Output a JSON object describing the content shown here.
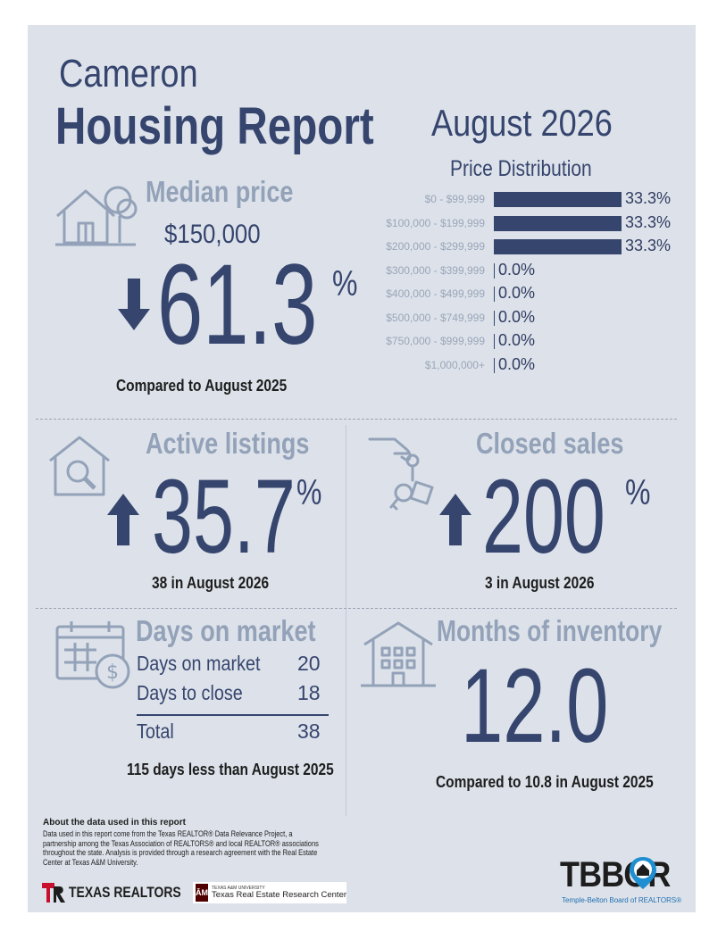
{
  "header": {
    "city": "Cameron",
    "title": "Housing Report",
    "period": "August 2026"
  },
  "median_price": {
    "label": "Median price",
    "value": "$150,000",
    "change": "61.3",
    "pct_sign": "%",
    "direction": "down",
    "comparison": "Compared to August 2025"
  },
  "price_distribution": {
    "title": "Price Distribution",
    "rows": [
      {
        "range": "$0 - $99,999",
        "pct": "33.3%",
        "value": 33.3
      },
      {
        "range": "$100,000 - $199,999",
        "pct": "33.3%",
        "value": 33.3
      },
      {
        "range": "$200,000 - $299,999",
        "pct": "33.3%",
        "value": 33.3
      },
      {
        "range": "$300,000 - $399,999",
        "pct": "0.0%",
        "value": 0
      },
      {
        "range": "$400,000 - $499,999",
        "pct": "0.0%",
        "value": 0
      },
      {
        "range": "$500,000 - $749,999",
        "pct": "0.0%",
        "value": 0
      },
      {
        "range": "$750,000 - $999,999",
        "pct": "0.0%",
        "value": 0
      },
      {
        "range": "$1,000,000+",
        "pct": "0.0%",
        "value": 0
      }
    ]
  },
  "active_listings": {
    "label": "Active listings",
    "change": "35.7",
    "pct_sign": "%",
    "direction": "up",
    "note": "38 in August 2026"
  },
  "closed_sales": {
    "label": "Closed sales",
    "change": "200",
    "pct_sign": "%",
    "direction": "up",
    "note": "3 in August 2026"
  },
  "days_on_market": {
    "label": "Days on market",
    "rows": [
      {
        "label": "Days on market",
        "value": "20"
      },
      {
        "label": "Days to close",
        "value": "18"
      }
    ],
    "total_label": "Total",
    "total_value": "38",
    "note": "115 days less than August 2025"
  },
  "months_inventory": {
    "label": "Months of inventory",
    "value": "12.0",
    "note": "Compared to 10.8 in August 2025"
  },
  "footer": {
    "about_title": "About the data used in this report",
    "about_text": "Data used in this report come from the Texas REALTOR® Data Relevance Project, a partnership among the Texas Association of REALTORS® and local REALTOR® associations throughout the state. Analysis is provided through a research agreement with the Real Estate Center at Texas A&M University.",
    "texas_realtors": "TEXAS REALTORS",
    "tamu_small": "TEXAS A&M UNIVERSITY",
    "tamu_center": "Texas Real Estate Research Center",
    "tbbor_logo": "TBBOR",
    "tbbor_name": "Temple-Belton Board of REALTORS®"
  },
  "colors": {
    "navy": "#36456e",
    "gray_label": "#93a2b8",
    "panel": "#dde2ea",
    "texas_red": "#c8102e",
    "tamu_maroon": "#500000",
    "tbbor_blue": "#1f8fd1"
  }
}
